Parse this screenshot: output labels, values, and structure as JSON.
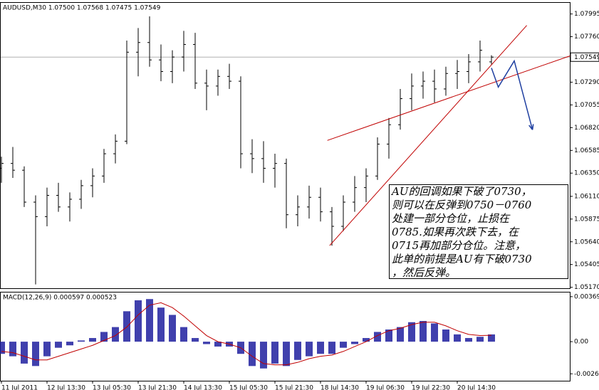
{
  "chart_data": {
    "type": "ohlc",
    "header": "AUDUSD,M30  1.07500 1.07568 1.07475 1.07549",
    "categories": [
      "11 Jul 2011",
      null,
      null,
      null,
      "12 Jul 13:30",
      null,
      null,
      null,
      "13 Jul 05:30",
      null,
      null,
      null,
      "13 Jul 21:30",
      null,
      null,
      null,
      "14 Jul 13:30",
      null,
      null,
      null,
      "15 Jul 05:30",
      null,
      null,
      null,
      "15 Jul 21:30",
      null,
      null,
      null,
      "18 Jul 14:30",
      null,
      null,
      null,
      "19 Jul 06:30",
      null,
      null,
      null,
      "19 Jul 22:30",
      null,
      null,
      null,
      "20 Jul 14:30",
      null,
      null,
      null
    ],
    "open": [
      1.064,
      1.0645,
      1.0638,
      1.0605,
      1.059,
      1.0612,
      1.06,
      1.0608,
      1.0622,
      1.0632,
      1.0655,
      1.0668,
      1.076,
      1.077,
      1.0752,
      1.074,
      1.0755,
      1.0768,
      1.0728,
      1.0725,
      1.0735,
      1.073,
      1.0655,
      1.065,
      1.064,
      1.0645,
      1.0592,
      1.06,
      1.061,
      1.0595,
      1.058,
      1.0605,
      1.062,
      1.0632,
      1.0665,
      1.0685,
      1.0712,
      1.0725,
      1.073,
      1.0722,
      1.0738,
      1.074,
      1.075,
      1.075
    ],
    "high": [
      1.0652,
      1.0662,
      1.0642,
      1.0612,
      1.062,
      1.0625,
      1.0615,
      1.0628,
      1.064,
      1.066,
      1.0675,
      1.0772,
      1.0785,
      1.0797,
      1.0768,
      1.0762,
      1.0782,
      1.078,
      1.0742,
      1.0742,
      1.0748,
      1.0735,
      1.067,
      1.0668,
      1.0655,
      1.065,
      1.0612,
      1.0622,
      1.062,
      1.06,
      1.0612,
      1.0632,
      1.064,
      1.0672,
      1.0692,
      1.0722,
      1.0738,
      1.074,
      1.0742,
      1.0745,
      1.0752,
      1.0758,
      1.0772,
      1.07568
    ],
    "low": [
      1.0625,
      1.063,
      1.06,
      1.052,
      1.058,
      1.0595,
      1.0585,
      1.0598,
      1.061,
      1.0625,
      1.0645,
      1.0665,
      1.0735,
      1.0745,
      1.073,
      1.0728,
      1.074,
      1.0722,
      1.07,
      1.0715,
      1.0722,
      1.064,
      1.0635,
      1.0625,
      1.062,
      1.0578,
      1.058,
      1.0588,
      1.0585,
      1.056,
      1.0575,
      1.0595,
      1.0605,
      1.0628,
      1.065,
      1.068,
      1.07,
      1.0712,
      1.0708,
      1.0715,
      1.0722,
      1.0728,
      1.074,
      1.07475
    ],
    "close": [
      1.0645,
      1.0638,
      1.0605,
      1.059,
      1.0612,
      1.06,
      1.0608,
      1.0622,
      1.0632,
      1.0655,
      1.0668,
      1.076,
      1.077,
      1.0752,
      1.074,
      1.0755,
      1.0768,
      1.0728,
      1.0725,
      1.0735,
      1.073,
      1.0655,
      1.065,
      1.064,
      1.0645,
      1.0592,
      1.06,
      1.061,
      1.0595,
      1.058,
      1.0605,
      1.062,
      1.0632,
      1.0665,
      1.0685,
      1.0712,
      1.0725,
      1.073,
      1.0722,
      1.0738,
      1.074,
      1.075,
      1.0762,
      1.07549
    ],
    "color": "#000000",
    "ylim": [
      1.0516,
      1.0811
    ],
    "yticks": [
      1.07995,
      {
        "value": 1.0776,
        "label": "1.07760"
      },
      {
        "value": 1.0729,
        "label": "1.07290"
      },
      1.07055,
      {
        "value": 1.0682,
        "label": "1.06820"
      },
      1.06585,
      {
        "value": 1.0635,
        "label": "1.06350"
      },
      {
        "value": 1.0611,
        "label": "1.06110"
      },
      1.05875,
      {
        "value": 1.0564,
        "label": "1.05640"
      },
      1.05405,
      {
        "value": 1.0517,
        "label": "1.05170"
      }
    ],
    "current_price": 1.07549,
    "trendlines": [
      {
        "color": "#c00000",
        "x": [
          28.6,
          49.9
        ],
        "y": [
          1.06688,
          1.07562
        ]
      },
      {
        "color": "#c00000",
        "x": [
          28.8,
          46.1
        ],
        "y": [
          1.05601,
          1.07877
        ]
      }
    ],
    "arrow": {
      "color": "#1f3fa0",
      "x": [
        43,
        43.6,
        45,
        46.6
      ],
      "y": [
        1.07437,
        1.07239,
        1.0751,
        1.06798
      ]
    },
    "annotation": [
      "AU的回调如果下破了0730，",
      "则可以在反弹到0750－0760",
      "处建一部分仓位，止损在",
      "0785.如果再次跌下去，在",
      "0715再加部分仓位。注意，",
      "此单的前提是AU有下破0730",
      "，然后反弹。"
    ],
    "macd": {
      "header": "MACD(12,26,9) 0.000597 0.000523",
      "series": [
        {
          "name": "MACD",
          "color": "#1f1f9f",
          "values": [
            -0.001,
            -0.0012,
            -0.0018,
            -0.002,
            -0.0012,
            -0.0005,
            -0.0003,
            0.0001,
            0.0003,
            0.0008,
            0.0012,
            0.0025,
            0.0034,
            0.0035,
            0.0028,
            0.0022,
            0.0012,
            0.0003,
            -0.0002,
            -0.0004,
            -0.0004,
            -0.001,
            -0.002,
            -0.0022,
            -0.0018,
            -0.002,
            -0.0015,
            -0.0012,
            -0.001,
            -0.001,
            -0.0005,
            -0.0002,
            0.0003,
            0.0008,
            0.001,
            0.0012,
            0.0016,
            0.0017,
            0.0015,
            0.001,
            0.0006,
            0.0003,
            0.0004,
            0.000597
          ]
        },
        {
          "name": "Signal",
          "color": "#c00000",
          "values": [
            -0.0008,
            -0.0009,
            -0.0012,
            -0.0015,
            -0.0015,
            -0.0012,
            -0.0009,
            -0.0006,
            -0.0003,
            0.0001,
            0.0005,
            0.0012,
            0.0022,
            0.003,
            0.0032,
            0.0028,
            0.0021,
            0.0013,
            0.0005,
            0.0,
            -0.0002,
            -0.0005,
            -0.0012,
            -0.0018,
            -0.0019,
            -0.0019,
            -0.0017,
            -0.0014,
            -0.0012,
            -0.0011,
            -0.0008,
            -0.0004,
            0.0,
            0.0005,
            0.0009,
            0.0011,
            0.0014,
            0.0016,
            0.0016,
            0.0013,
            0.0009,
            0.0006,
            0.0005,
            0.000523
          ]
        }
      ],
      "ylim": [
        -0.00321,
        0.00404
      ],
      "yticks": [
        0.003697,
        {
          "value": 0,
          "label": "0.00"
        },
        -0.00264
      ]
    }
  }
}
